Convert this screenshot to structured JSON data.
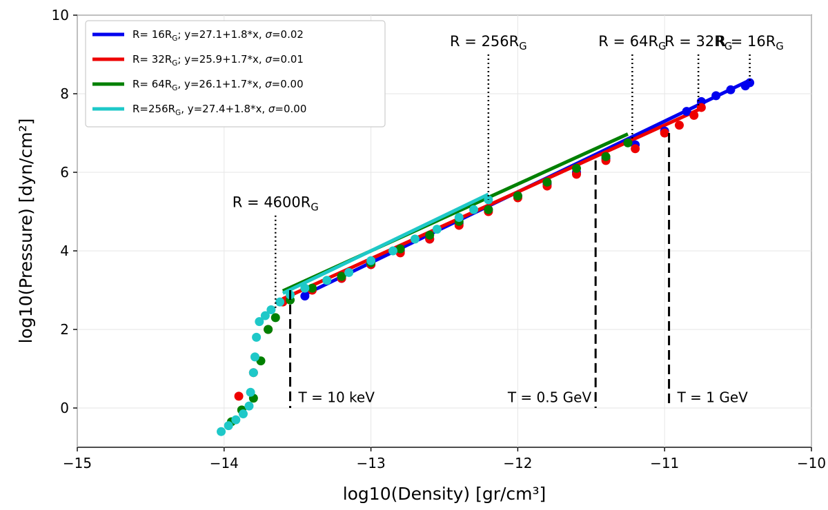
{
  "chart_data": {
    "type": "scatter",
    "title": "",
    "xlabel": "log10(Density) [gr/cm³]",
    "ylabel": "log10(Pressure) [dyn/cm²]",
    "xlim": [
      -15,
      -10
    ],
    "ylim": [
      -1,
      10
    ],
    "x_ticks": [
      -15,
      -14,
      -13,
      -12,
      -11,
      -10
    ],
    "y_ticks": [
      0,
      2,
      4,
      6,
      8,
      10
    ],
    "x_tick_labels": [
      "−15",
      "−14",
      "−13",
      "−12",
      "−11",
      "−10"
    ],
    "y_tick_labels": [
      "0",
      "2",
      "4",
      "6",
      "8",
      "10"
    ],
    "grid": true,
    "legend_position": "top-left",
    "series": [
      {
        "name": "R= 16R_G; y=27.1+1.8*x, σ=0.02",
        "legend": {
          "prefix": "R= 16R",
          "sub": "G",
          "suffix": "; y=27.1+1.8*x, ",
          "sigma": "σ",
          "tail": "=0.02"
        },
        "color": "#0000ee",
        "fit": {
          "intercept": 27.1,
          "slope": 1.8
        },
        "points": [
          [
            -13.45,
            2.85
          ],
          [
            -13.2,
            3.3
          ],
          [
            -13.0,
            3.65
          ],
          [
            -12.8,
            4.0
          ],
          [
            -12.6,
            4.3
          ],
          [
            -12.4,
            4.7
          ],
          [
            -12.2,
            5.05
          ],
          [
            -12.0,
            5.4
          ],
          [
            -11.8,
            5.7
          ],
          [
            -11.6,
            6.0
          ],
          [
            -11.4,
            6.35
          ],
          [
            -11.2,
            6.7
          ],
          [
            -11.0,
            7.05
          ],
          [
            -10.85,
            7.55
          ],
          [
            -10.75,
            7.8
          ],
          [
            -10.65,
            7.95
          ],
          [
            -10.55,
            8.1
          ],
          [
            -10.45,
            8.2
          ],
          [
            -10.42,
            8.28
          ]
        ]
      },
      {
        "name": "R= 32R_G; y=25.9+1.7*x, σ=0.01",
        "legend": {
          "prefix": "R= 32R",
          "sub": "G",
          "suffix": "; y=25.9+1.7*x, ",
          "sigma": "σ",
          "tail": "=0.01"
        },
        "color": "#ee0000",
        "fit": {
          "intercept": 25.9,
          "slope": 1.7
        },
        "points": [
          [
            -13.9,
            0.3
          ],
          [
            -13.8,
            0.9
          ],
          [
            -13.7,
            2.0
          ],
          [
            -13.6,
            2.7
          ],
          [
            -13.4,
            3.0
          ],
          [
            -13.2,
            3.3
          ],
          [
            -13.0,
            3.65
          ],
          [
            -12.8,
            3.95
          ],
          [
            -12.6,
            4.3
          ],
          [
            -12.4,
            4.65
          ],
          [
            -12.2,
            5.0
          ],
          [
            -12.0,
            5.35
          ],
          [
            -11.8,
            5.65
          ],
          [
            -11.6,
            5.95
          ],
          [
            -11.4,
            6.3
          ],
          [
            -11.2,
            6.6
          ],
          [
            -11.0,
            7.0
          ],
          [
            -10.9,
            7.2
          ],
          [
            -10.8,
            7.45
          ],
          [
            -10.75,
            7.65
          ]
        ]
      },
      {
        "name": "R= 64R_G, y=26.1+1.7*x, σ=0.00",
        "legend": {
          "prefix": "R= 64R",
          "sub": "G",
          "suffix": ",  y=26.1+1.7*x, ",
          "sigma": "σ",
          "tail": "=0.00"
        },
        "color": "#008000",
        "fit": {
          "intercept": 26.1,
          "slope": 1.7
        },
        "points": [
          [
            -13.95,
            -0.35
          ],
          [
            -13.88,
            -0.05
          ],
          [
            -13.8,
            0.25
          ],
          [
            -13.75,
            1.2
          ],
          [
            -13.7,
            2.0
          ],
          [
            -13.65,
            2.3
          ],
          [
            -13.55,
            2.75
          ],
          [
            -13.4,
            3.05
          ],
          [
            -13.2,
            3.35
          ],
          [
            -13.0,
            3.7
          ],
          [
            -12.8,
            4.05
          ],
          [
            -12.6,
            4.4
          ],
          [
            -12.4,
            4.75
          ],
          [
            -12.2,
            5.05
          ],
          [
            -12.0,
            5.4
          ],
          [
            -11.8,
            5.75
          ],
          [
            -11.6,
            6.1
          ],
          [
            -11.4,
            6.4
          ],
          [
            -11.25,
            6.75
          ]
        ]
      },
      {
        "name": "R=256R_G, y=27.4+1.8*x, σ=0.00",
        "legend": {
          "prefix": "R=256R",
          "sub": "G",
          "suffix": ", y=27.4+1.8*x, ",
          "sigma": "σ",
          "tail": "=0.00"
        },
        "color": "#1ec8c8",
        "fit": {
          "intercept": 27.4,
          "slope": 1.8
        },
        "points": [
          [
            -14.02,
            -0.6
          ],
          [
            -13.97,
            -0.45
          ],
          [
            -13.92,
            -0.3
          ],
          [
            -13.87,
            -0.15
          ],
          [
            -13.83,
            0.05
          ],
          [
            -13.82,
            0.4
          ],
          [
            -13.8,
            0.9
          ],
          [
            -13.79,
            1.3
          ],
          [
            -13.78,
            1.8
          ],
          [
            -13.76,
            2.2
          ],
          [
            -13.72,
            2.35
          ],
          [
            -13.68,
            2.5
          ],
          [
            -13.62,
            2.7
          ],
          [
            -13.55,
            2.88
          ],
          [
            -13.45,
            3.05
          ],
          [
            -13.3,
            3.25
          ],
          [
            -13.15,
            3.45
          ],
          [
            -13.0,
            3.75
          ],
          [
            -12.85,
            4.0
          ],
          [
            -12.7,
            4.3
          ],
          [
            -12.55,
            4.55
          ],
          [
            -12.4,
            4.85
          ],
          [
            -12.3,
            5.05
          ],
          [
            -12.2,
            5.3
          ]
        ]
      }
    ],
    "annotations": [
      {
        "type": "dotted",
        "x": -13.65,
        "y_top": 4.9,
        "y_bottom": 2.5,
        "label": {
          "prefix": "R = 4600R",
          "sub": "G"
        }
      },
      {
        "type": "dotted",
        "x": -12.2,
        "y_top": 9.0,
        "y_bottom": 5.3,
        "label": {
          "prefix": "R = 256R",
          "sub": "G"
        }
      },
      {
        "type": "dotted",
        "x": -11.22,
        "y_top": 9.0,
        "y_bottom": 6.8,
        "label": {
          "prefix": "R = 64R",
          "sub": "G"
        }
      },
      {
        "type": "dotted",
        "x": -10.77,
        "y_top": 9.0,
        "y_bottom": 7.7,
        "label": {
          "prefix": "R = 32R",
          "sub": "G"
        }
      },
      {
        "type": "dotted",
        "x": -10.42,
        "y_top": 9.0,
        "y_bottom": 8.3,
        "label": {
          "prefix": "R = 16R",
          "sub": "G"
        }
      },
      {
        "type": "dashed",
        "x": -13.55,
        "y_top": 3.0,
        "y_bottom": 0.0,
        "label": "T = 10 keV"
      },
      {
        "type": "dashed",
        "x": -11.47,
        "y_top": 6.3,
        "y_bottom": 0.0,
        "label": "T = 0.5 GeV"
      },
      {
        "type": "dashed",
        "x": -10.97,
        "y_top": 7.0,
        "y_bottom": 0.0,
        "label": "T = 1 GeV"
      }
    ]
  }
}
